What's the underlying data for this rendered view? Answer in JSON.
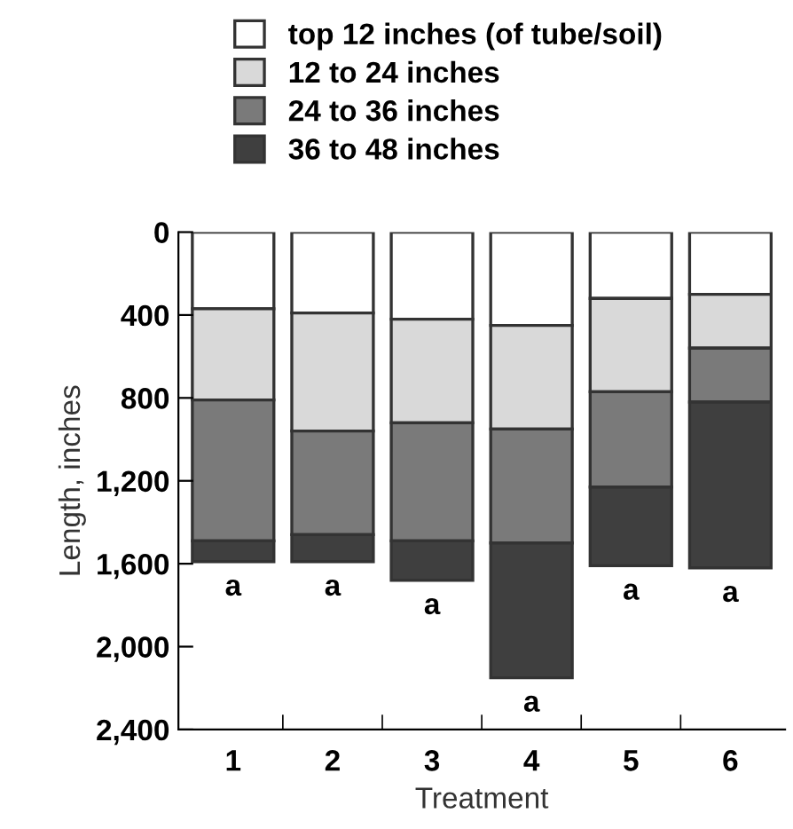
{
  "chart_data": {
    "type": "bar",
    "stacked": true,
    "xlabel": "Treatment",
    "ylabel": "Length, inches",
    "categories": [
      "1",
      "2",
      "3",
      "4",
      "5",
      "6"
    ],
    "series": [
      {
        "name": "top 12 inches (of tube/soil)",
        "color": "#ffffff",
        "values": [
          370,
          390,
          420,
          450,
          320,
          300
        ]
      },
      {
        "name": "12 to 24 inches",
        "color": "#d9d9d9",
        "values": [
          440,
          570,
          500,
          500,
          450,
          260
        ]
      },
      {
        "name": "24 to 36 inches",
        "color": "#7a7a7a",
        "values": [
          680,
          500,
          570,
          550,
          460,
          260
        ]
      },
      {
        "name": "36 to 48 inches",
        "color": "#3f3f3f",
        "values": [
          100,
          130,
          190,
          650,
          380,
          800
        ]
      }
    ],
    "ylim": [
      2400,
      0
    ],
    "yticks": [
      0,
      400,
      800,
      {
        "value": 1200,
        "label": "1,200"
      },
      {
        "value": 1600,
        "label": "1,600"
      },
      {
        "value": 2000,
        "label": "2,000"
      },
      {
        "value": 2400,
        "label": "2,400"
      }
    ],
    "annotations": [
      "a",
      "a",
      "a",
      "a",
      "a",
      "a"
    ],
    "legend": "top left",
    "grid": false
  }
}
